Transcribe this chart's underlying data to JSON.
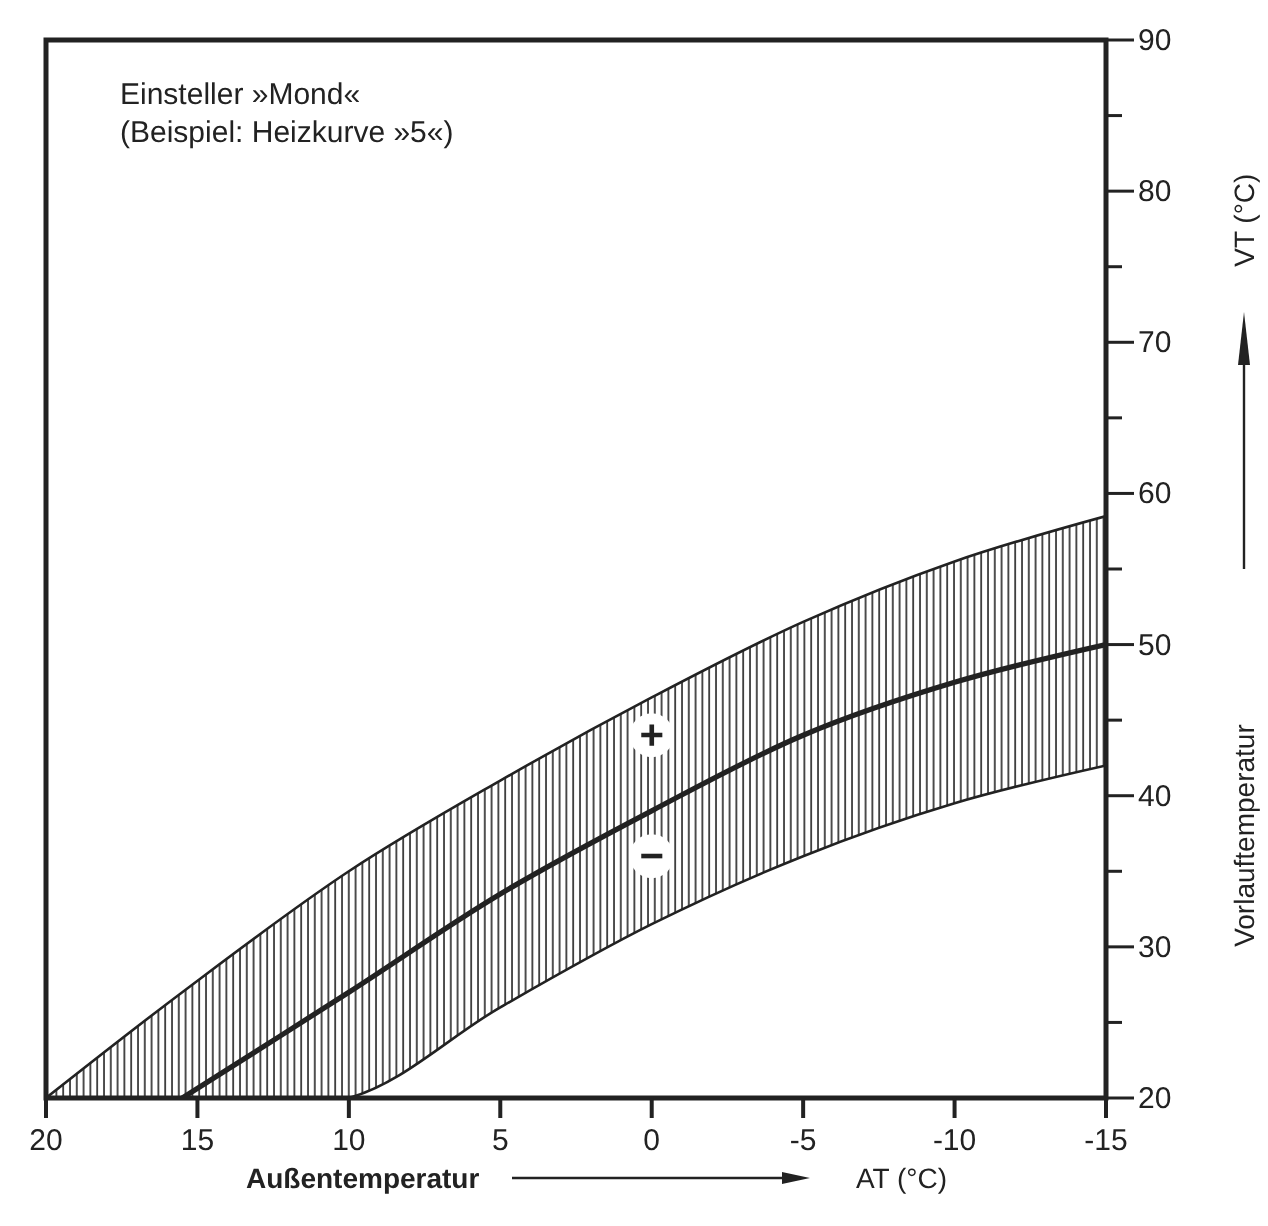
{
  "chart_data": {
    "type": "line",
    "title": "Einsteller »Mond«",
    "subtitle": "(Beispiel: Heizkurve »5«)",
    "xlabel": "Außentemperatur",
    "ylabel": "Vorlauftemperatur",
    "x": [
      20,
      15.5,
      10,
      5,
      0,
      -5,
      -10,
      -15
    ],
    "series": [
      {
        "color": "#222222",
        "values": [
          20,
          27,
          35,
          41,
          46.5,
          51.5,
          55.5,
          58.5
        ]
      },
      {
        "color": "#222222",
        "values": [
          null,
          20,
          27,
          33.5,
          39,
          44,
          47.5,
          50
        ],
        "lower": [
          20,
          20,
          20,
          26,
          31.5,
          36,
          39.5,
          42
        ],
        "upper": [
          20,
          27,
          35,
          41,
          46.5,
          51.5,
          55.5,
          58.5
        ]
      },
      {
        "color": "#222222",
        "values": [
          20,
          20,
          20,
          26,
          31.5,
          36,
          39.5,
          42
        ]
      }
    ],
    "xlim": [
      20,
      -15
    ],
    "xticks": [
      20,
      15,
      10,
      5,
      0,
      -5,
      -10,
      -15
    ],
    "ylim": [
      20,
      90
    ],
    "yticks": [
      20,
      {
        "value": 25,
        "label": null
      },
      30,
      {
        "value": 35,
        "label": null
      },
      40,
      {
        "value": 45,
        "label": null
      },
      50,
      {
        "value": 55,
        "label": null
      },
      60,
      {
        "value": 65,
        "label": null
      },
      70,
      {
        "value": 75,
        "label": null
      },
      80,
      {
        "value": 85,
        "label": null
      },
      90
    ],
    "annotations": [
      "AT (°C)",
      "VT (°C)",
      {
        "text": "+",
        "x": 0,
        "y": 44
      },
      {
        "text": "−",
        "x": 0,
        "y": 36
      }
    ],
    "grid": false,
    "marker": "none",
    "line_style": "solid"
  }
}
